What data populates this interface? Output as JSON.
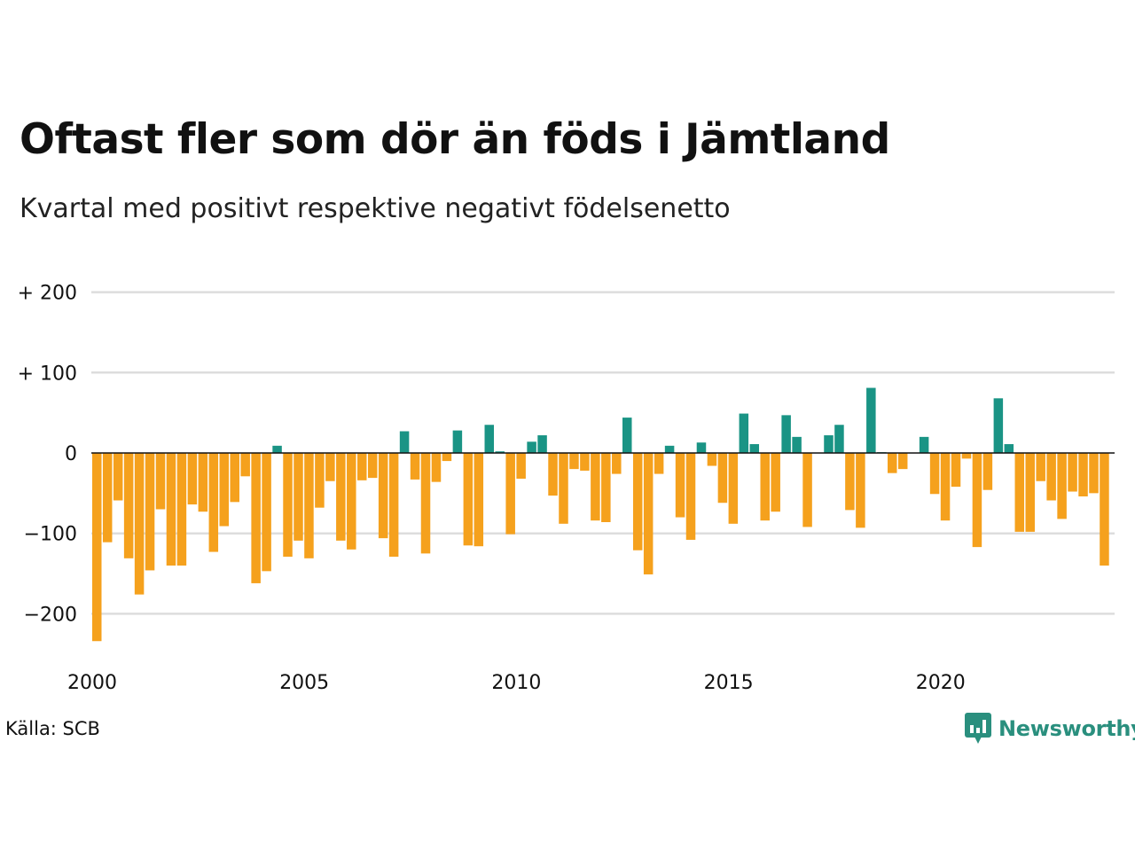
{
  "title": "Oftast fler som dör än föds i Jämtland",
  "subtitle": "Kvartal med positivt respektive negativt födelsenetto",
  "source": "Källa: SCB",
  "brand": "Newsworthy",
  "colors": {
    "positive": "#1a9485",
    "negative": "#f5a11d",
    "brand": "#2a8f7e",
    "grid": "#dddddd",
    "zero_line": "#111111"
  },
  "chart_data": {
    "type": "bar",
    "title": "Oftast fler som dör än föds i Jämtland",
    "subtitle": "Kvartal med positivt respektive negativt födelsenetto",
    "xlabel": "",
    "ylabel": "",
    "x_start": "2000 Q1",
    "x_end": "2023 Q4",
    "x_ticks": [
      2000,
      2005,
      2010,
      2015,
      2020
    ],
    "x_tick_labels": [
      "2000",
      "2005",
      "2010",
      "2015",
      "2020"
    ],
    "y_ticks": [
      200,
      100,
      0,
      -100,
      -200
    ],
    "y_tick_labels": [
      "+ 200",
      "+ 100",
      "0",
      "−100",
      "−200"
    ],
    "ylim": [
      -235,
      200
    ],
    "grid": true,
    "legend": "none",
    "series": [
      {
        "values": [
          -234,
          -111,
          -59,
          -131,
          -176,
          -146,
          -70,
          -140,
          -140,
          -64,
          -73,
          -123,
          -91,
          -61,
          -29,
          -162,
          -147,
          9,
          -129,
          -109,
          -131,
          -68,
          -35,
          -109,
          -120,
          -34,
          -31,
          -106,
          -129,
          27,
          -33,
          -125,
          -36,
          -10,
          28,
          -115,
          -116,
          35,
          2,
          -101,
          -32,
          14,
          22,
          -53,
          -88,
          -20,
          -22,
          -84,
          -86,
          -26,
          44,
          -121,
          -151,
          -26,
          9,
          -80,
          -108,
          13,
          -16,
          -62,
          -88,
          49,
          11,
          -84,
          -73,
          47,
          20,
          -92,
          0,
          22,
          35,
          -71,
          -93,
          81,
          1,
          -25,
          -20,
          0,
          20,
          -51,
          -84,
          -42,
          -7,
          -117,
          -46,
          68,
          11,
          -98,
          -98,
          -35,
          -59,
          -82,
          -48,
          -54,
          -50,
          -140
        ]
      }
    ]
  }
}
